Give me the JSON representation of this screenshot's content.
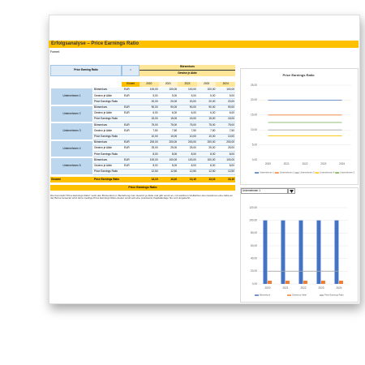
{
  "title": "Erfolgsanalyse – Price Earnings Ratio",
  "formula": {
    "label": "Formel:",
    "name": "Price Earning Ratio",
    "equals": "=",
    "numerator": "Börsenkurs",
    "denominator": "Gewinn je Aktie"
  },
  "table": {
    "header": [
      "Einheit",
      "2020",
      "2021",
      "2022",
      "2023",
      "2024"
    ],
    "companies": [
      {
        "name": "Unternehmen 1",
        "rows": [
          {
            "metric": "Börsenkurs",
            "unit": "EUR",
            "values": [
              "100,00",
              "100,00",
              "100,00",
              "100,00",
              "100,00"
            ]
          },
          {
            "metric": "Gewinn je Aktie",
            "unit": "EUR",
            "values": [
              "5,00",
              "5,00",
              "5,00",
              "5,00",
              "5,00"
            ]
          },
          {
            "metric": "Price Earnings Ratio",
            "values": [
              "20,00",
              "20,00",
              "20,00",
              "20,00",
              "20,00"
            ]
          }
        ]
      },
      {
        "name": "Unternehmen 2",
        "rows": [
          {
            "metric": "Börsenkurs",
            "unit": "EUR",
            "values": [
              "90,00",
              "90,00",
              "90,00",
              "90,00",
              "90,00"
            ]
          },
          {
            "metric": "Gewinn je Aktie",
            "unit": "EUR",
            "values": [
              "6,00",
              "6,00",
              "6,00",
              "6,00",
              "6,00"
            ]
          },
          {
            "metric": "Price Earnings Ratio",
            "values": [
              "15,00",
              "15,00",
              "15,00",
              "15,00",
              "15,00"
            ]
          }
        ]
      },
      {
        "name": "Unternehmen 3",
        "rows": [
          {
            "metric": "Börsenkurs",
            "unit": "EUR",
            "values": [
              "75,00",
              "75,00",
              "75,00",
              "75,00",
              "75,00"
            ]
          },
          {
            "metric": "Gewinn je Aktie",
            "unit": "EUR",
            "values": [
              "7,50",
              "7,50",
              "7,50",
              "7,50",
              "7,50"
            ]
          },
          {
            "metric": "Price Earnings Ratio",
            "values": [
              "10,00",
              "10,00",
              "10,00",
              "10,00",
              "10,00"
            ]
          }
        ]
      },
      {
        "name": "Unternehmen 4",
        "rows": [
          {
            "metric": "Börsenkurs",
            "unit": "EUR",
            "values": [
              "200,00",
              "200,00",
              "200,00",
              "200,00",
              "200,00"
            ]
          },
          {
            "metric": "Gewinn je Aktie",
            "unit": "EUR",
            "values": [
              "25,00",
              "25,00",
              "25,00",
              "25,00",
              "25,00"
            ]
          },
          {
            "metric": "Price Earnings Ratio",
            "values": [
              "8,00",
              "8,00",
              "8,00",
              "8,00",
              "8,00"
            ]
          }
        ]
      },
      {
        "name": "Unternehmen 5",
        "rows": [
          {
            "metric": "Börsenkurs",
            "unit": "EUR",
            "values": [
              "100,00",
              "100,00",
              "100,00",
              "100,00",
              "100,00"
            ]
          },
          {
            "metric": "Gewinn je Aktie",
            "unit": "EUR",
            "values": [
              "8,00",
              "8,00",
              "8,00",
              "8,00",
              "8,00"
            ]
          },
          {
            "metric": "Price Earnings Ratio",
            "values": [
              "12,50",
              "12,50",
              "12,50",
              "12,50",
              "12,50"
            ]
          }
        ]
      }
    ],
    "total": {
      "name": "Gesamt",
      "metric": "Price Earnings Ratio",
      "values": [
        "13,10",
        "13,10",
        "13,10",
        "13,10",
        "13,10"
      ]
    }
  },
  "section": {
    "heading": "Price Earnings Ratio",
    "text": "Die Kennzahl \"Price Earnings Ratio\" setzt den Börsenkurs in Beziehung zum Gewinn je Aktie und gibt somit an, mit welchem Vielfachen des Gewinnes eine Aktie an der Börse bewertet wird. Eine niedrige Price Earnings Ratio deutet somit auf eine preiswerte Kapitalanlage hin und umgekehrt."
  },
  "chart_data": [
    {
      "type": "line",
      "title": "Price Earnings Ratio",
      "categories": [
        "2020",
        "2021",
        "2022",
        "2023",
        "2024"
      ],
      "series": [
        {
          "name": "Unternehmen 1",
          "color": "#4472c4",
          "values": [
            20,
            20,
            20,
            20,
            20
          ]
        },
        {
          "name": "Unternehmen 2",
          "color": "#ed7d31",
          "values": [
            15,
            15,
            15,
            15,
            15
          ]
        },
        {
          "name": "Unternehmen 3",
          "color": "#a5a5a5",
          "values": [
            10,
            10,
            10,
            10,
            10
          ]
        },
        {
          "name": "Unternehmen 4",
          "color": "#ffc000",
          "values": [
            8,
            8,
            8,
            8,
            8
          ]
        },
        {
          "name": "Unternehmen 5",
          "color": "#70ad47",
          "values": [
            12.5,
            12.5,
            12.5,
            12.5,
            12.5
          ]
        }
      ],
      "ylim": [
        0,
        25
      ],
      "yticks": [
        {
          "value": 0,
          "label": "0,00"
        },
        {
          "value": 5,
          "label": "5,00"
        },
        {
          "value": 10,
          "label": "10,00"
        },
        {
          "value": 15,
          "label": "15,00"
        },
        {
          "value": 20,
          "label": "20,00"
        },
        {
          "value": 25,
          "label": "25,00"
        }
      ],
      "grid": true
    },
    {
      "type": "bar",
      "title": "Unternehmen 1",
      "categories": [
        "2020",
        "2021",
        "2022",
        "2023",
        "2024"
      ],
      "series": [
        {
          "name": "Börsenkurs",
          "color": "#4472c4",
          "values": [
            100,
            100,
            100,
            100,
            100
          ]
        },
        {
          "name": "Gewinn je Aktie",
          "color": "#ed7d31",
          "values": [
            5,
            5,
            5,
            5,
            5
          ]
        },
        {
          "name": "Price Earnings Ratio",
          "color": "#a5a5a5",
          "type": "line",
          "values": [
            20,
            20,
            20,
            20,
            20
          ]
        }
      ],
      "ylim": [
        0,
        120
      ],
      "yticks": [
        {
          "value": 0,
          "label": "0,00"
        },
        {
          "value": 20,
          "label": "20,00"
        },
        {
          "value": 40,
          "label": "40,00"
        },
        {
          "value": 60,
          "label": "60,00"
        },
        {
          "value": 80,
          "label": "80,00"
        },
        {
          "value": 100,
          "label": "100,00"
        },
        {
          "value": 120,
          "label": "120,00"
        }
      ],
      "grid": true
    }
  ]
}
